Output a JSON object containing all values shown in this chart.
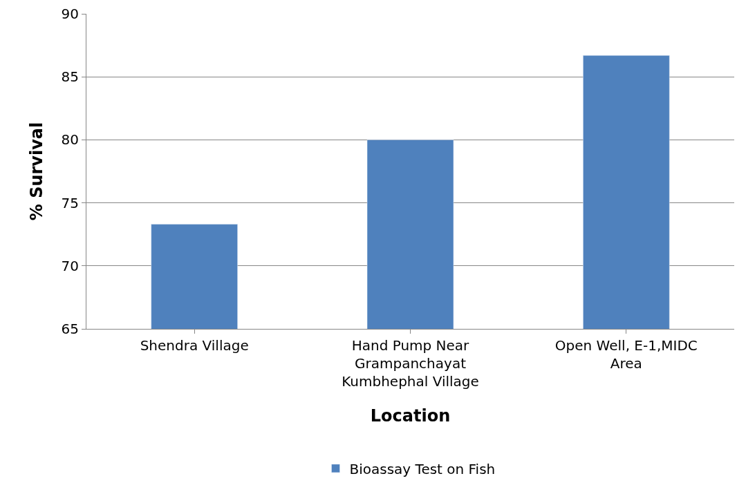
{
  "chart_data": {
    "type": "bar",
    "xlabel": "Location",
    "ylabel": "% Survival",
    "categories": [
      "Shendra Village",
      "Hand Pump Near Grampanchayat Kumbhephal Village",
      "Open Well, E-1,MIDC Area"
    ],
    "series": [
      {
        "name": "Bioassay Test on Fish",
        "color": "#4f81bd",
        "values": [
          73.3,
          80,
          86.7
        ]
      }
    ],
    "ylim": [
      65,
      90
    ],
    "yticks": [
      65,
      70,
      75,
      80,
      85,
      90
    ],
    "grid": "y",
    "legend": "bottom"
  }
}
